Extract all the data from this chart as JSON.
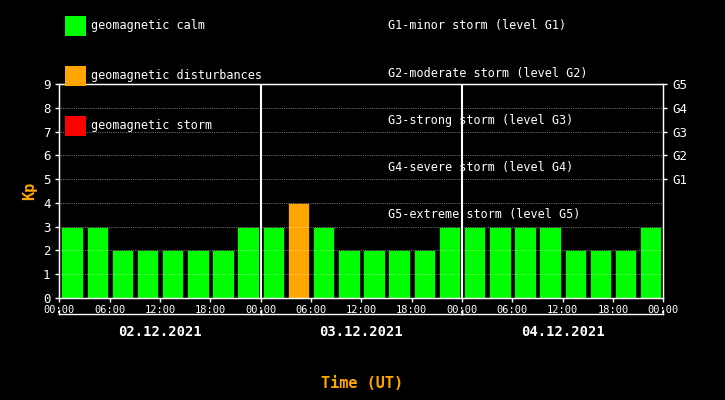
{
  "background_color": "#000000",
  "plot_bg_color": "#000000",
  "bar_values": [
    3,
    3,
    2,
    2,
    2,
    2,
    2,
    3,
    3,
    4,
    3,
    2,
    2,
    2,
    2,
    3,
    3,
    3,
    3,
    3,
    2,
    2,
    2,
    3
  ],
  "bar_colors": [
    "#00ff00",
    "#00ff00",
    "#00ff00",
    "#00ff00",
    "#00ff00",
    "#00ff00",
    "#00ff00",
    "#00ff00",
    "#00ff00",
    "#ffa500",
    "#00ff00",
    "#00ff00",
    "#00ff00",
    "#00ff00",
    "#00ff00",
    "#00ff00",
    "#00ff00",
    "#00ff00",
    "#00ff00",
    "#00ff00",
    "#00ff00",
    "#00ff00",
    "#00ff00",
    "#00ff00"
  ],
  "ylim": [
    0,
    9
  ],
  "yticks": [
    0,
    1,
    2,
    3,
    4,
    5,
    6,
    7,
    8,
    9
  ],
  "ylabel": "Kp",
  "ylabel_color": "#ffa500",
  "xlabel": "Time (UT)",
  "xlabel_color": "#ffa500",
  "day_labels": [
    "02.12.2021",
    "03.12.2021",
    "04.12.2021"
  ],
  "x_tick_labels": [
    "00:00",
    "06:00",
    "12:00",
    "18:00",
    "00:00",
    "06:00",
    "12:00",
    "18:00",
    "00:00",
    "06:00",
    "12:00",
    "18:00",
    "00:00"
  ],
  "right_axis_labels": [
    "G1",
    "G2",
    "G3",
    "G4",
    "G5"
  ],
  "right_axis_positions": [
    5,
    6,
    7,
    8,
    9
  ],
  "right_axis_label_color": "#ffffff",
  "vline_positions": [
    8,
    16
  ],
  "legend_items": [
    {
      "label": "geomagnetic calm",
      "color": "#00ff00"
    },
    {
      "label": "geomagnetic disturbances",
      "color": "#ffa500"
    },
    {
      "label": "geomagnetic storm",
      "color": "#ff0000"
    }
  ],
  "legend_right_text": [
    "G1-minor storm (level G1)",
    "G2-moderate storm (level G2)",
    "G3-strong storm (level G3)",
    "G4-severe storm (level G4)",
    "G5-extreme storm (level G5)"
  ],
  "tick_color": "#ffffff",
  "grid_color": "#ffffff",
  "axis_color": "#ffffff",
  "font_color": "#ffffff",
  "bar_width": 0.85,
  "bar_edge_color": "#000000"
}
